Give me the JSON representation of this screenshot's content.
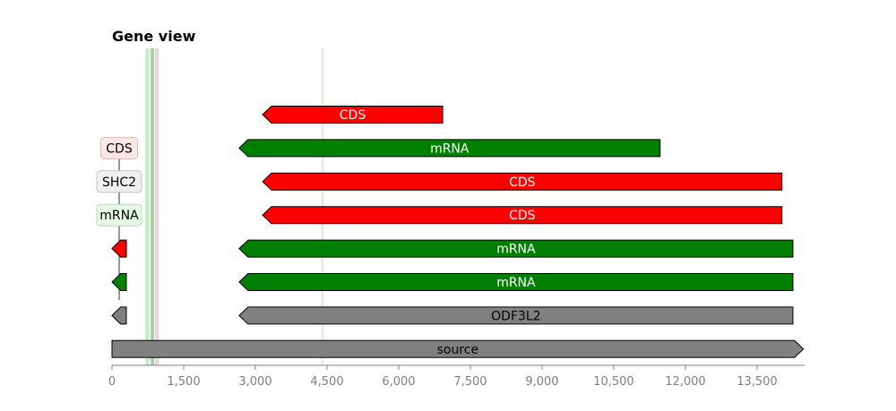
{
  "title": "Gene view",
  "axis": {
    "ticks": [
      "0",
      "1,500",
      "3,000",
      "4,500",
      "6,000",
      "7,500",
      "9,000",
      "10,500",
      "12,000",
      "13,500"
    ],
    "tick_values": [
      0,
      1500,
      3000,
      4500,
      6000,
      7500,
      9000,
      10500,
      12000,
      13500
    ],
    "range": [
      0,
      14500
    ]
  },
  "highlights": [
    {
      "start": 700,
      "end": 780,
      "color": "#b8ecb8"
    },
    {
      "start": 810,
      "end": 880,
      "color": "#9dc89d"
    },
    {
      "start": 900,
      "end": 980,
      "color": "#e5d0d0"
    },
    {
      "start": 4380,
      "end": 4430,
      "color": "#d8efd8"
    }
  ],
  "features": [
    {
      "row": 0,
      "label": "CDS",
      "start": 3150,
      "end": 6920,
      "strand": -1,
      "color": "#ff0000",
      "text_color": "#ffffff"
    },
    {
      "row": 1,
      "label": "mRNA",
      "start": 2660,
      "end": 11470,
      "strand": -1,
      "color": "#008000",
      "text_color": "#ffffff"
    },
    {
      "row": 2,
      "label": "CDS",
      "start": 3150,
      "end": 14020,
      "strand": -1,
      "color": "#ff0000",
      "text_color": "#ffffff"
    },
    {
      "row": 3,
      "label": "CDS",
      "start": 3150,
      "end": 14020,
      "strand": -1,
      "color": "#ff0000",
      "text_color": "#ffffff"
    },
    {
      "row": 4,
      "label": "mRNA",
      "start": 2660,
      "end": 14250,
      "strand": -1,
      "color": "#008000",
      "text_color": "#ffffff"
    },
    {
      "row": 5,
      "label": "mRNA",
      "start": 2660,
      "end": 14250,
      "strand": -1,
      "color": "#008000",
      "text_color": "#ffffff"
    },
    {
      "row": 6,
      "label": "ODF3L2",
      "start": 2660,
      "end": 14250,
      "strand": -1,
      "color": "#808080",
      "text_color": "#000000"
    },
    {
      "row": 7,
      "label": "source",
      "start": 0,
      "end": 14470,
      "strand": 1,
      "color": "#808080",
      "text_color": "#000000"
    }
  ],
  "small_features": [
    {
      "row": 4,
      "start": 0,
      "end": 300,
      "strand": -1,
      "color": "#ff0000"
    },
    {
      "row": 5,
      "start": 0,
      "end": 300,
      "strand": -1,
      "color": "#008000"
    },
    {
      "row": 6,
      "start": 0,
      "end": 300,
      "strand": -1,
      "color": "#808080"
    }
  ],
  "callouts": [
    {
      "row": 1,
      "label": "CDS",
      "bg": "#fde6e6",
      "border": "#e0b8b8"
    },
    {
      "row": 2,
      "label": "SHC2",
      "bg": "#f0f0f0",
      "border": "#c0c0c0"
    },
    {
      "row": 3,
      "label": "mRNA",
      "bg": "#e6f8e6",
      "border": "#b8dcb8"
    }
  ]
}
